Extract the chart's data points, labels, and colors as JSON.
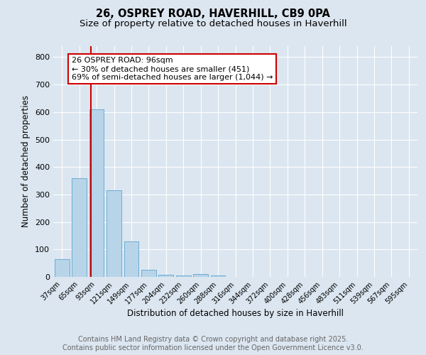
{
  "title_line1": "26, OSPREY ROAD, HAVERHILL, CB9 0PA",
  "title_line2": "Size of property relative to detached houses in Haverhill",
  "xlabel": "Distribution of detached houses by size in Haverhill",
  "ylabel": "Number of detached properties",
  "bar_labels": [
    "37sqm",
    "65sqm",
    "93sqm",
    "121sqm",
    "149sqm",
    "177sqm",
    "204sqm",
    "232sqm",
    "260sqm",
    "288sqm",
    "316sqm",
    "344sqm",
    "372sqm",
    "400sqm",
    "428sqm",
    "456sqm",
    "483sqm",
    "511sqm",
    "539sqm",
    "567sqm",
    "595sqm"
  ],
  "bar_heights": [
    65,
    360,
    610,
    315,
    130,
    25,
    8,
    5,
    10,
    5,
    0,
    0,
    0,
    0,
    0,
    0,
    0,
    0,
    0,
    0,
    0
  ],
  "bar_color": "#b8d4e8",
  "bar_edgecolor": "#6aadd5",
  "vline_color": "#cc0000",
  "vline_pos": 1.65,
  "annotation_text": "26 OSPREY ROAD: 96sqm\n← 30% of detached houses are smaller (451)\n69% of semi-detached houses are larger (1,044) →",
  "annotation_box_facecolor": "#ffffff",
  "annotation_box_edgecolor": "#cc0000",
  "ylim": [
    0,
    840
  ],
  "yticks": [
    0,
    100,
    200,
    300,
    400,
    500,
    600,
    700,
    800
  ],
  "bg_color": "#dce6f0",
  "footer_line1": "Contains HM Land Registry data © Crown copyright and database right 2025.",
  "footer_line2": "Contains public sector information licensed under the Open Government Licence v3.0.",
  "title_fontsize": 10.5,
  "subtitle_fontsize": 9.5,
  "axis_label_fontsize": 8.5,
  "tick_fontsize": 7,
  "footer_fontsize": 7,
  "annot_fontsize": 8
}
